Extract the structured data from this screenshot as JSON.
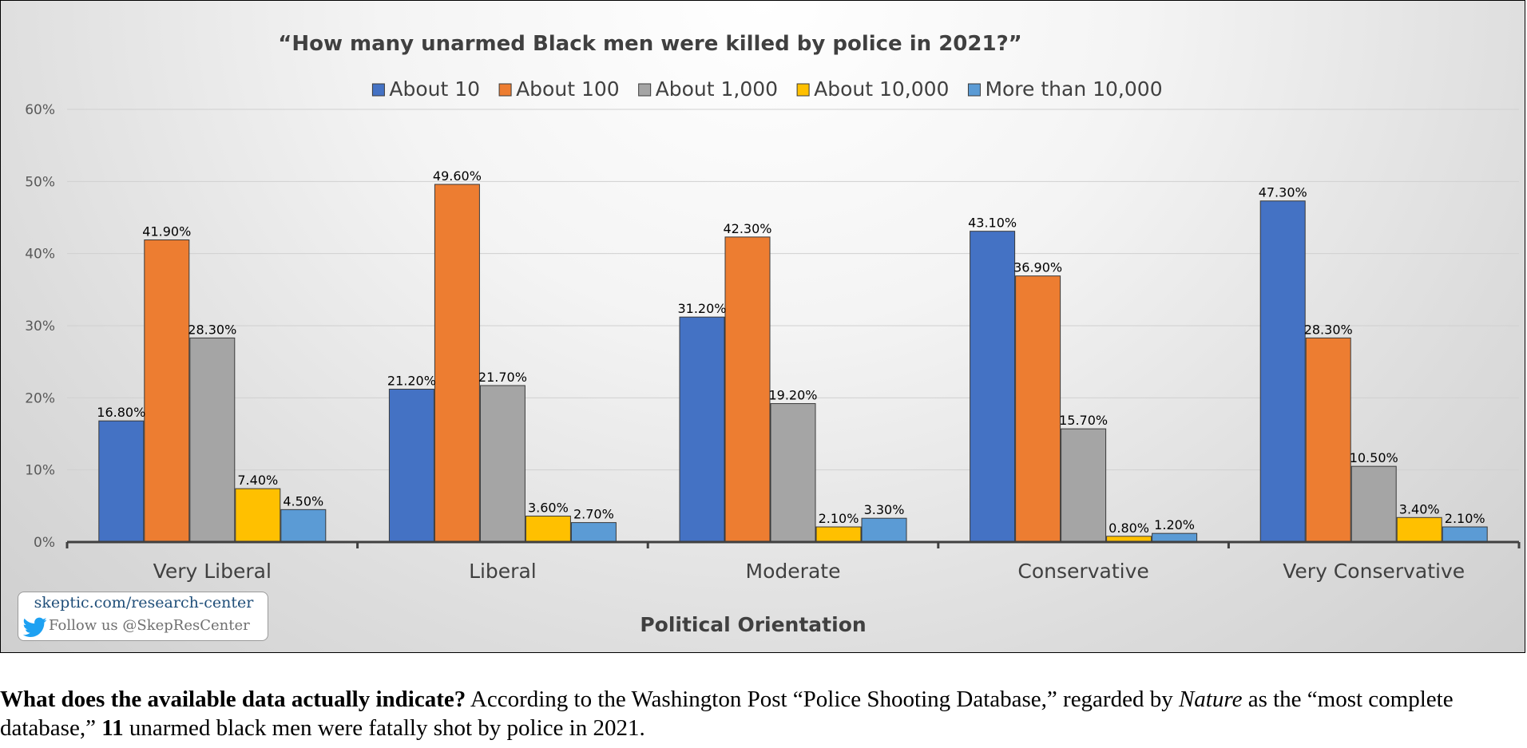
{
  "chart_data": {
    "type": "bar",
    "title": "“How many unarmed Black men were killed by police in 2021?”",
    "xlabel": "Political Orientation",
    "ylabel": "",
    "categories": [
      "Very Liberal",
      "Liberal",
      "Moderate",
      "Conservative",
      "Very Conservative"
    ],
    "series": [
      {
        "name": "About 10",
        "color": "#4472C4",
        "values": [
          16.8,
          21.2,
          31.2,
          43.1,
          47.3
        ],
        "labels": [
          "16.80%",
          "21.20%",
          "31.20%",
          "43.10%",
          "47.30%"
        ]
      },
      {
        "name": "About 100",
        "color": "#ED7D31",
        "values": [
          41.9,
          49.6,
          42.3,
          36.9,
          28.3
        ],
        "labels": [
          "41.90%",
          "49.60%",
          "42.30%",
          "36.90%",
          "28.30%"
        ]
      },
      {
        "name": "About 1,000",
        "color": "#A5A5A5",
        "values": [
          28.3,
          21.7,
          19.2,
          15.7,
          10.5
        ],
        "labels": [
          "28.30%",
          "21.70%",
          "19.20%",
          "15.70%",
          "10.50%"
        ]
      },
      {
        "name": "About 10,000",
        "color": "#FFC000",
        "values": [
          7.4,
          3.6,
          2.1,
          0.8,
          3.4
        ],
        "labels": [
          "7.40%",
          "3.60%",
          "2.10%",
          "0.80%",
          "3.40%"
        ]
      },
      {
        "name": "More than 10,000",
        "color": "#5B9BD5",
        "values": [
          4.5,
          2.7,
          3.3,
          1.2,
          2.1
        ],
        "labels": [
          "4.50%",
          "2.70%",
          "3.30%",
          "1.20%",
          "2.10%"
        ]
      }
    ],
    "ylim": [
      0,
      60
    ],
    "yticks": [
      "0%",
      "10%",
      "20%",
      "30%",
      "40%",
      "50%",
      "60%"
    ],
    "grid": true,
    "legend_position": "top"
  },
  "badge": {
    "url": "skeptic.com/research-center",
    "follow": "Follow us @SkepResCenter",
    "icon": "twitter-bird-icon",
    "icon_color": "#1DA1F2"
  },
  "caption": {
    "lead_bold": "What does the available data actually indicate?",
    "part1": " According to the Washington Post “Police Shooting Database,” regarded by ",
    "italic": "Nature",
    "part2": " as the “most complete database,” ",
    "number_bold": "11",
    "part3": " unarmed black men were fatally shot by police in 2021."
  }
}
